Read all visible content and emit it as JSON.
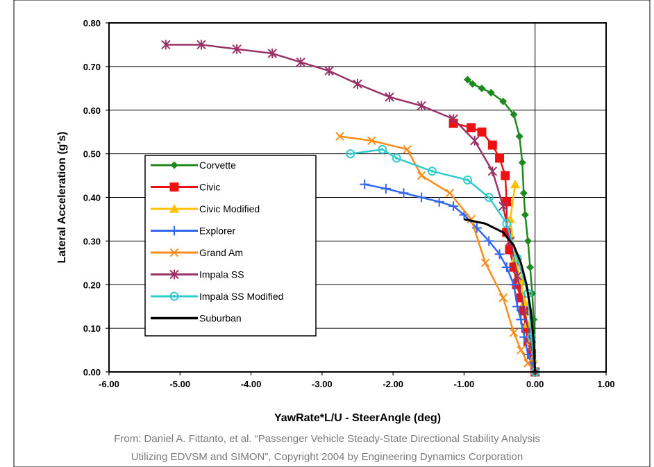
{
  "chart_data": {
    "type": "line",
    "title": "",
    "xlabel": "YawRate*L/U - SteerAngle (deg)",
    "ylabel": "Lateral Acceleration (g's)",
    "xlim": [
      -6.0,
      1.0
    ],
    "ylim": [
      0.0,
      0.8
    ],
    "xticks": [
      "-6.00",
      "-5.00",
      "-4.00",
      "-3.00",
      "-2.00",
      "-1.00",
      "0.00",
      "1.00"
    ],
    "yticks": [
      "0.00",
      "0.10",
      "0.20",
      "0.30",
      "0.40",
      "0.50",
      "0.60",
      "0.70",
      "0.80"
    ],
    "grid": "horizontal",
    "legend_position": "center-left",
    "series": [
      {
        "name": "Corvette",
        "color": "#1e8a1e",
        "marker": "diamond",
        "x": [
          -0.95,
          -0.88,
          -0.75,
          -0.62,
          -0.45,
          -0.3,
          -0.22,
          -0.18,
          -0.16,
          -0.14,
          -0.1,
          -0.07,
          -0.04,
          -0.02,
          0.0
        ],
        "y": [
          0.67,
          0.66,
          0.65,
          0.64,
          0.62,
          0.59,
          0.54,
          0.48,
          0.41,
          0.36,
          0.3,
          0.24,
          0.18,
          0.12,
          0.0
        ]
      },
      {
        "name": "Civic",
        "color": "#ee1111",
        "marker": "square",
        "x": [
          -1.15,
          -0.9,
          -0.75,
          -0.6,
          -0.5,
          -0.42,
          -0.4,
          -0.4,
          -0.36,
          -0.3,
          -0.26,
          -0.2,
          -0.16,
          -0.13,
          -0.1,
          -0.05,
          0.0
        ],
        "y": [
          0.57,
          0.56,
          0.55,
          0.52,
          0.49,
          0.45,
          0.39,
          0.32,
          0.28,
          0.24,
          0.2,
          0.17,
          0.14,
          0.1,
          0.07,
          0.04,
          0.0
        ]
      },
      {
        "name": "Civic Modified",
        "color": "#ffc000",
        "marker": "triangle",
        "x": [
          -0.28,
          -0.35,
          -0.28,
          -0.2,
          -0.15,
          -0.11,
          -0.07,
          -0.03,
          0.0
        ],
        "y": [
          0.43,
          0.35,
          0.26,
          0.21,
          0.16,
          0.11,
          0.07,
          0.03,
          0.0
        ]
      },
      {
        "name": "Explorer",
        "color": "#3366ee",
        "marker": "plus",
        "x": [
          -2.4,
          -2.1,
          -1.85,
          -1.6,
          -1.35,
          -1.15,
          -1.0,
          -0.82,
          -0.65,
          -0.5,
          -0.4,
          -0.3,
          -0.25,
          -0.2,
          -0.15,
          -0.1,
          -0.05,
          0.0
        ],
        "y": [
          0.43,
          0.42,
          0.41,
          0.4,
          0.39,
          0.38,
          0.36,
          0.33,
          0.3,
          0.27,
          0.24,
          0.2,
          0.15,
          0.12,
          0.08,
          0.04,
          0.02,
          0.0
        ]
      },
      {
        "name": "Grand Am",
        "color": "#ff8c1a",
        "marker": "x",
        "x": [
          -2.75,
          -2.3,
          -1.8,
          -1.6,
          -1.2,
          -0.9,
          -0.7,
          -0.45,
          -0.3,
          -0.2,
          -0.1,
          0.0
        ],
        "y": [
          0.54,
          0.53,
          0.51,
          0.45,
          0.41,
          0.35,
          0.25,
          0.17,
          0.09,
          0.05,
          0.02,
          0.0
        ]
      },
      {
        "name": "Impala SS",
        "color": "#993366",
        "marker": "star",
        "x": [
          -5.2,
          -4.7,
          -4.2,
          -3.7,
          -3.3,
          -2.9,
          -2.5,
          -2.05,
          -1.6,
          -1.15,
          -0.85,
          -0.6,
          -0.45,
          -0.35,
          -0.25,
          -0.15,
          -0.05,
          0.0
        ],
        "y": [
          0.75,
          0.75,
          0.74,
          0.73,
          0.71,
          0.69,
          0.66,
          0.63,
          0.61,
          0.58,
          0.53,
          0.46,
          0.38,
          0.3,
          0.22,
          0.14,
          0.06,
          0.0
        ]
      },
      {
        "name": "Impala SS Modified",
        "color": "#33cccc",
        "marker": "circle",
        "x": [
          -2.6,
          -2.15,
          -1.95,
          -1.45,
          -0.95,
          -0.65,
          -0.4,
          -0.25,
          -0.1,
          -0.05,
          0.0
        ],
        "y": [
          0.5,
          0.51,
          0.49,
          0.46,
          0.44,
          0.4,
          0.34,
          0.26,
          0.18,
          0.08,
          0.0
        ]
      },
      {
        "name": "Suburban",
        "color": "#000000",
        "marker": "none",
        "x": [
          -1.0,
          -0.7,
          -0.45,
          -0.3,
          -0.2,
          -0.12,
          -0.06,
          -0.02,
          0.0
        ],
        "y": [
          0.35,
          0.34,
          0.32,
          0.29,
          0.25,
          0.2,
          0.14,
          0.07,
          0.0
        ]
      }
    ]
  },
  "caption": {
    "line1": "From: Daniel A. Fittanto, et al. “Passenger Vehicle Steady-State Directional Stability Analysis",
    "line2": "Utilizing EDVSM and SIMON”, Copyright 2004 by Engineering Dynamics Corporation"
  }
}
